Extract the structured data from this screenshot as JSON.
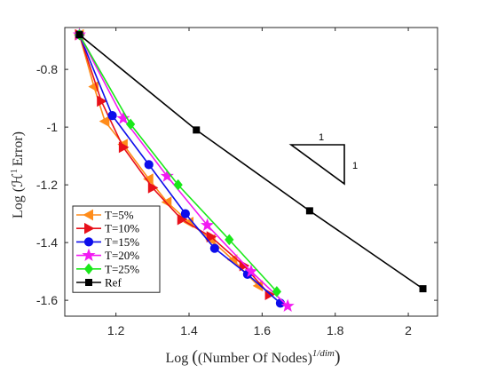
{
  "chart_data": {
    "type": "line",
    "title": "",
    "xlabel_prefix": "Log ",
    "xlabel_main": "(Number Of Nodes)",
    "xlabel_sup": "1/dim",
    "ylabel_prefix": "Log ",
    "ylabel_main": "Error)",
    "ylabel_H": "(ℋ",
    "ylabel_sup": "1",
    "xlim": [
      1.06,
      2.08
    ],
    "ylim": [
      -1.655,
      -0.655
    ],
    "xticks": [
      1.2,
      1.4,
      1.6,
      1.8,
      2
    ],
    "xtick_labels": [
      "1.2",
      "1.4",
      "1.6",
      "1.8",
      "2"
    ],
    "yticks": [
      -0.8,
      -1,
      -1.2,
      -1.4,
      -1.6
    ],
    "ytick_labels": [
      "-0.8",
      "-1",
      "-1.2",
      "-1.4",
      "-1.6"
    ],
    "grid": false,
    "legend_position": "bottom-left",
    "series": [
      {
        "name": "T=5%",
        "color": "#FF8C1A",
        "marker": "triangle-left",
        "x": [
          1.1,
          1.14,
          1.17,
          1.22,
          1.29,
          1.34,
          1.4,
          1.46,
          1.52,
          1.59
        ],
        "y": [
          -0.68,
          -0.86,
          -0.98,
          -1.06,
          -1.18,
          -1.26,
          -1.33,
          -1.39,
          -1.46,
          -1.55
        ]
      },
      {
        "name": "T=10%",
        "color": "#E8101A",
        "marker": "triangle-right",
        "x": [
          1.1,
          1.16,
          1.22,
          1.3,
          1.38,
          1.46,
          1.55,
          1.62
        ],
        "y": [
          -0.68,
          -0.91,
          -1.07,
          -1.21,
          -1.32,
          -1.38,
          -1.48,
          -1.58
        ]
      },
      {
        "name": "T=15%",
        "color": "#0D0DEB",
        "marker": "circle",
        "x": [
          1.1,
          1.19,
          1.29,
          1.39,
          1.47,
          1.56,
          1.65
        ],
        "y": [
          -0.68,
          -0.96,
          -1.13,
          -1.3,
          -1.42,
          -1.51,
          -1.61
        ]
      },
      {
        "name": "T=20%",
        "color": "#F21BF2",
        "marker": "star",
        "x": [
          1.1,
          1.22,
          1.34,
          1.45,
          1.57,
          1.67
        ],
        "y": [
          -0.68,
          -0.97,
          -1.17,
          -1.34,
          -1.5,
          -1.62
        ]
      },
      {
        "name": "T=25%",
        "color": "#1AE81A",
        "marker": "diamond",
        "x": [
          1.1,
          1.24,
          1.37,
          1.51,
          1.64
        ],
        "y": [
          -0.68,
          -0.99,
          -1.2,
          -1.39,
          -1.57
        ]
      },
      {
        "name": "Ref",
        "color": "#000000",
        "marker": "square",
        "x": [
          1.1,
          1.42,
          1.73,
          2.04
        ],
        "y": [
          -0.68,
          -1.01,
          -1.29,
          -1.56
        ]
      }
    ],
    "slope_triangle": {
      "top_label": "1",
      "side_label": "1"
    }
  }
}
